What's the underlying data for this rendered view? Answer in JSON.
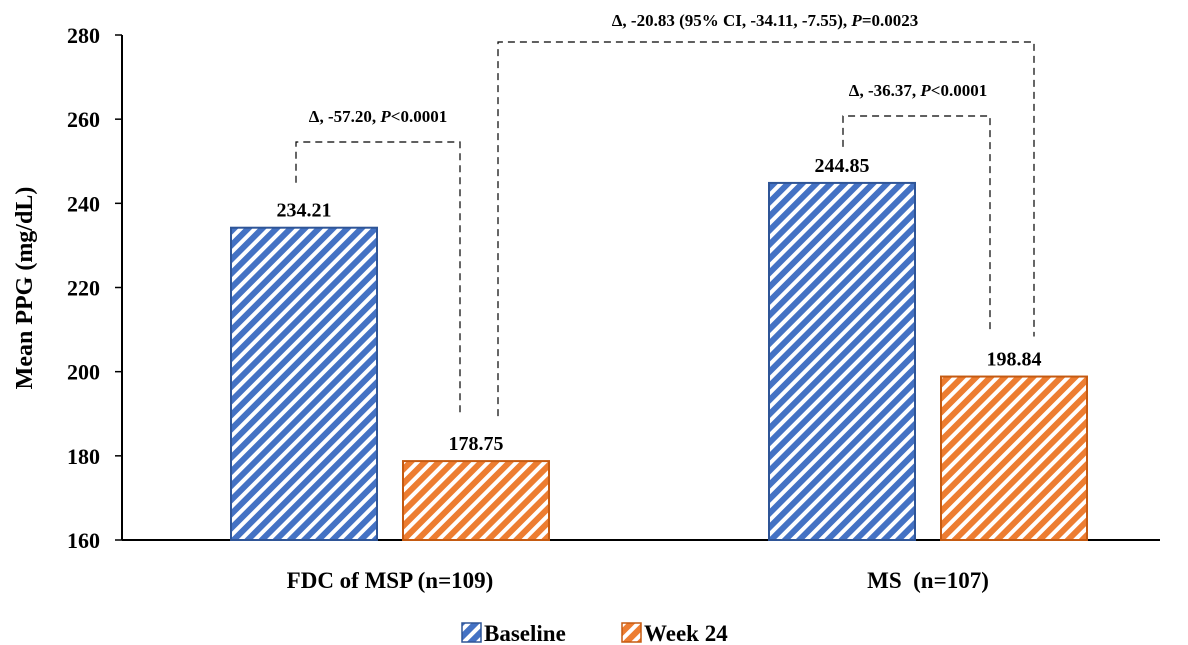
{
  "chart_data": {
    "type": "bar",
    "categories": [
      "FDC of MSP (n=109)",
      "MS  (n=107)"
    ],
    "series": [
      {
        "name": "Baseline",
        "values": [
          234.21,
          244.85
        ],
        "color": "#4472C4"
      },
      {
        "name": "Week 24",
        "values": [
          178.75,
          198.84
        ],
        "color": "#ED7D31"
      }
    ],
    "data_labels": [
      [
        "234.21",
        "244.85"
      ],
      [
        "178.75",
        "198.84"
      ]
    ],
    "ylabel": "Mean PPG (mg/dL)",
    "ylim": [
      160,
      280
    ],
    "yticks": [
      "160",
      "180",
      "200",
      "220",
      "240",
      "260",
      "280"
    ],
    "grid": false,
    "legend_position": "bottom",
    "annotations": [
      {
        "id": "fdc",
        "delta": "Δ, -57.20, ",
        "p_letter": "P",
        "p_value": "<0.0001"
      },
      {
        "id": "ms",
        "delta": "Δ, -36.37, ",
        "p_letter": "P",
        "p_value": "<0.0001"
      },
      {
        "id": "between",
        "delta": "Δ, -20.83 (95% CI, -34.11, -7.55), ",
        "p_letter": "P",
        "p_value": "=0.0023"
      }
    ]
  }
}
